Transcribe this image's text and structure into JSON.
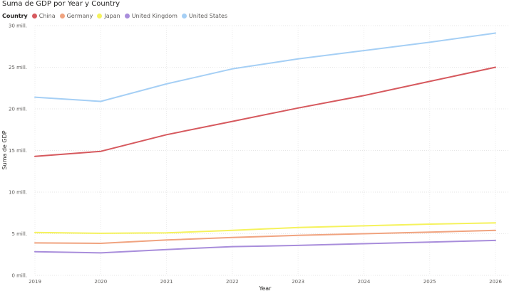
{
  "chart_data": {
    "type": "line",
    "title": "Suma de GDP por Year y Country",
    "legend_title": "Country",
    "xlabel": "Year",
    "ylabel": "Suma de GDP",
    "x": [
      "2019",
      "2020",
      "2021",
      "2022",
      "2023",
      "2024",
      "2025",
      "2026"
    ],
    "ylim": [
      0,
      30
    ],
    "yticks": [
      {
        "value": 0,
        "label": "0 mill."
      },
      {
        "value": 5,
        "label": "5 mill."
      },
      {
        "value": 10,
        "label": "10 mill."
      },
      {
        "value": 15,
        "label": "15 mill."
      },
      {
        "value": 20,
        "label": "20 mill."
      },
      {
        "value": 25,
        "label": "25 mill."
      },
      {
        "value": 30,
        "label": "30 mill."
      }
    ],
    "grid": true,
    "legend_position": "top-left",
    "series": [
      {
        "name": "China",
        "color": "#d6595e",
        "values": [
          14.3,
          14.9,
          16.9,
          18.5,
          20.1,
          21.6,
          23.3,
          25.0
        ]
      },
      {
        "name": "Germany",
        "color": "#f0a37f",
        "values": [
          3.9,
          3.85,
          4.25,
          4.55,
          4.8,
          5.0,
          5.2,
          5.4
        ]
      },
      {
        "name": "Japan",
        "color": "#f5f25c",
        "values": [
          5.15,
          5.05,
          5.1,
          5.4,
          5.75,
          5.95,
          6.15,
          6.3
        ]
      },
      {
        "name": "United Kingdom",
        "color": "#a88ddb",
        "values": [
          2.85,
          2.7,
          3.1,
          3.45,
          3.6,
          3.8,
          4.0,
          4.2
        ]
      },
      {
        "name": "United States",
        "color": "#a5cff5",
        "values": [
          21.4,
          20.9,
          23.0,
          24.8,
          26.0,
          27.0,
          28.0,
          29.1
        ]
      }
    ]
  }
}
